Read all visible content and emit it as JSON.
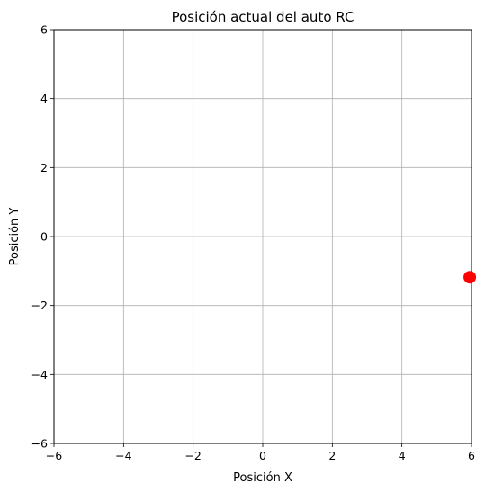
{
  "chart_data": {
    "type": "scatter",
    "title": "Posición actual del auto RC",
    "xlabel": "Posición X",
    "ylabel": "Posición Y",
    "xlim": [
      -6,
      6
    ],
    "ylim": [
      -6,
      6
    ],
    "xticks": [
      -6,
      -4,
      -2,
      0,
      2,
      4,
      6
    ],
    "yticks": [
      -6,
      -4,
      -2,
      0,
      2,
      4,
      6
    ],
    "xtick_labels": [
      "−6",
      "−4",
      "−2",
      "0",
      "2",
      "4",
      "6"
    ],
    "ytick_labels": [
      "−6",
      "−4",
      "−2",
      "0",
      "2",
      "4",
      "6"
    ],
    "grid": true,
    "points": [
      {
        "x": 5.95,
        "y": -1.18,
        "color": "#ff0000"
      }
    ]
  }
}
